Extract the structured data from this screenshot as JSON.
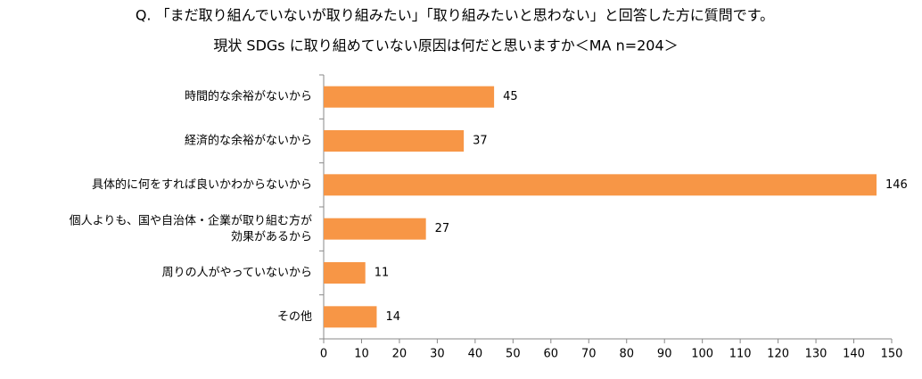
{
  "chart_data": {
    "type": "hbar",
    "title": "Q. 「まだ取り組んでいないが取り組みたい」「取り組みたいと思わない」と回答した方に質問です。",
    "subtitle": "現状 SDGs に取り組めていない原因は何だと思いますか＜MA n=204＞",
    "categories": [
      "時間的な余裕がないから",
      "経済的な余裕がないから",
      "具体的に何をすれば良いかわからないから",
      "個人よりも、国や自治体・企業が取り組む方が\n効果があるから",
      "周りの人がやっていないから",
      "その他"
    ],
    "values": [
      45,
      37,
      146,
      27,
      11,
      14
    ],
    "color": "#f79646",
    "xlim": [
      0,
      150
    ],
    "xticks": [
      0,
      10,
      20,
      30,
      40,
      50,
      60,
      70,
      80,
      90,
      100,
      110,
      120,
      130,
      140,
      150
    ]
  }
}
